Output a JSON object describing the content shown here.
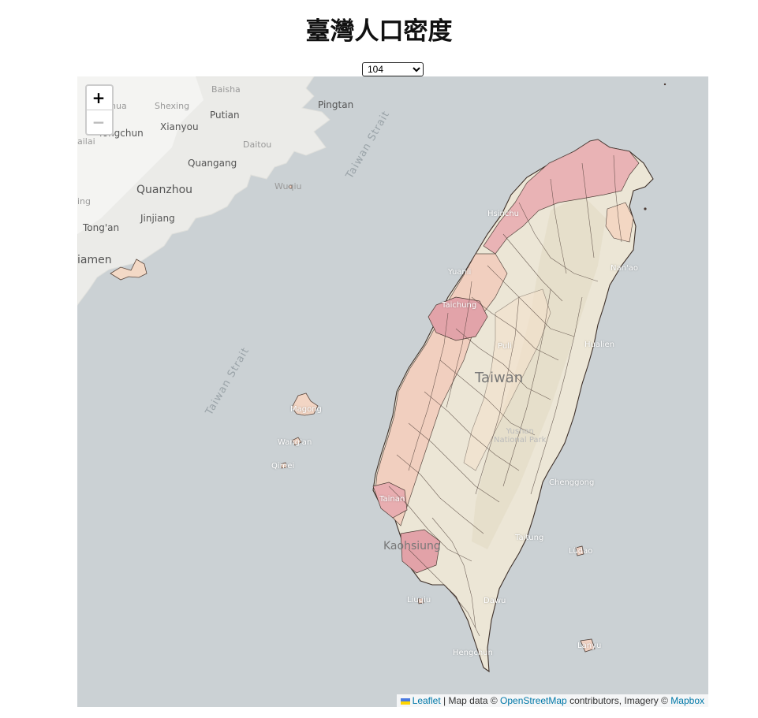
{
  "title": "臺灣人口密度",
  "year_select": {
    "value": "104",
    "options": [
      "104"
    ]
  },
  "zoom": {
    "in_label": "+",
    "out_label": "−"
  },
  "attribution": {
    "leaflet": "Leaflet",
    "sep": " | Map data © ",
    "osm": "OpenStreetMap",
    "middle": " contributors, Imagery © ",
    "mapbox": "Mapbox"
  },
  "colors": {
    "sea": "#cbd1d4",
    "land": "#ebebe8",
    "taiwan_base": "#ece6d6",
    "low_density": "#f5e2cc",
    "mid_density": "#f2cdbd",
    "high_density": "#e7a8ad",
    "border": "#4a3a33",
    "link": "#0078a8"
  },
  "map_labels": {
    "baisha": "Baisha",
    "shexing": "Shexing",
    "pingtan": "Pingtan",
    "putian": "Putian",
    "xianyou": "Xianyou",
    "yongchun": "Yongchun",
    "daitou": "Daitou",
    "quangang": "Quangang",
    "quanzhou": "Quanzhou",
    "jinjiang": "Jinjiang",
    "tongan": "Tong'an",
    "xiamen": "iamen",
    "hua": "hua",
    "ailai": "ailai",
    "ing": "ing",
    "wuqiu": "Wuqiu",
    "strait_north": "Taiwan Strait",
    "strait_south": "Taiwan Strait",
    "taiwan": "Taiwan",
    "hsinchu": "Hsinchu",
    "yuanli": "Yuanli",
    "taichung": "Taichung",
    "puli": "Puli",
    "hualien": "Hualien",
    "nanao": "Nan'ao",
    "yushan": "Yushan\nNational Park",
    "taitung": "Taitung",
    "chenggong": "Chenggong",
    "tainan": "Tainan",
    "kaohsiung": "Kaohsiung",
    "liuqiu": "Liuqiu",
    "dawu": "Dawu",
    "hengchun": "Hengchun",
    "lvdao": "Lüdao",
    "lanyu": "Lanyu",
    "wangan": "Wang'an",
    "qimei": "Qimei",
    "magong": "Magong"
  }
}
